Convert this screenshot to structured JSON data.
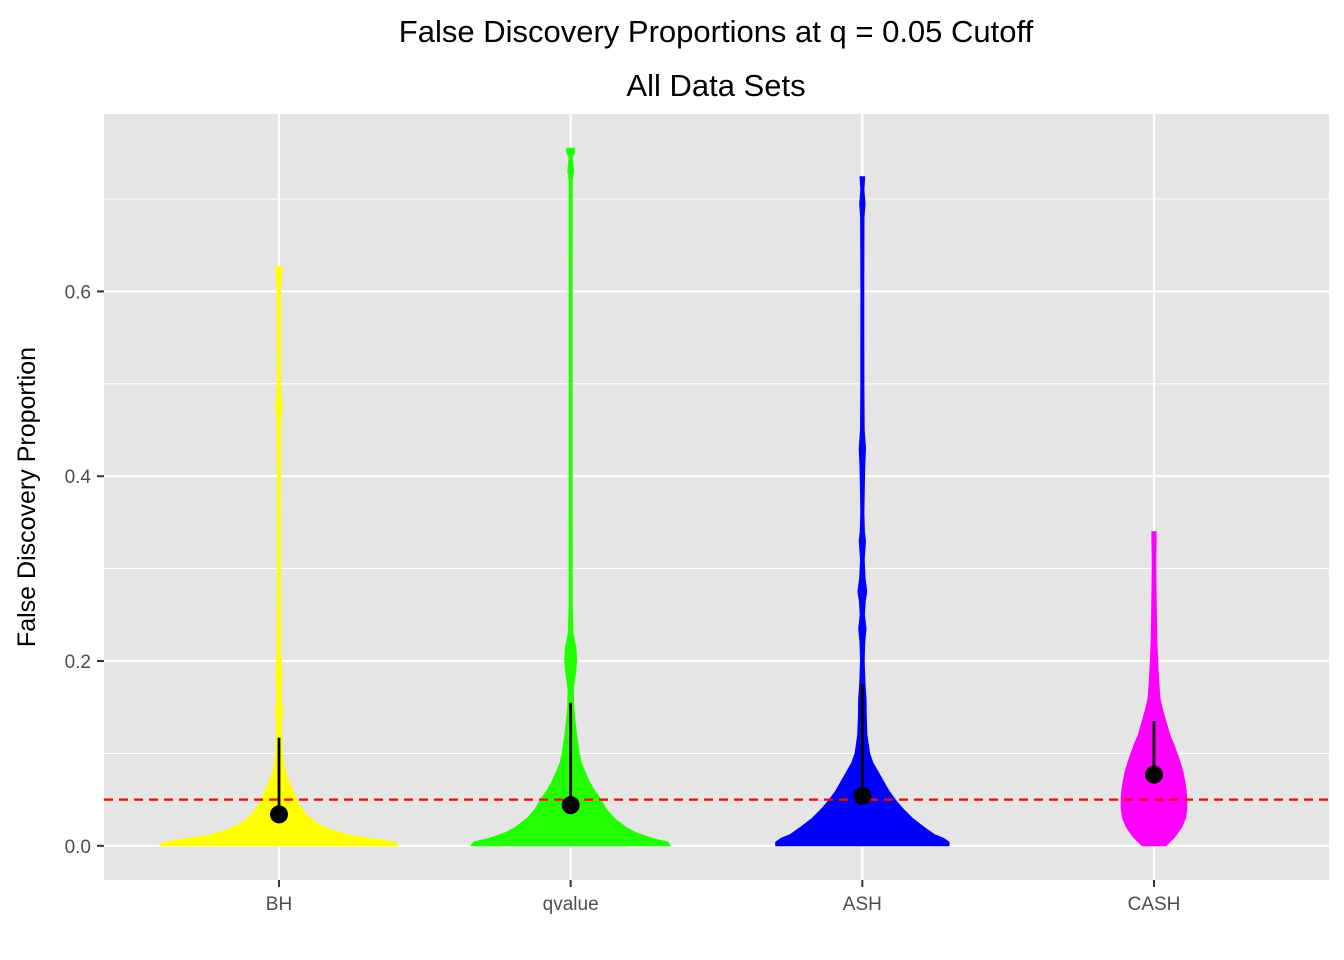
{
  "chart_data": {
    "type": "violin",
    "title": "False Discovery Proportions at q = 0.05 Cutoff",
    "subtitle": "All Data Sets",
    "xlabel": "",
    "ylabel": "False Discovery Proportion",
    "categories": [
      "BH",
      "qvalue",
      "ASH",
      "CASH"
    ],
    "ylim": [
      -0.037,
      0.792
    ],
    "y_ticks": [
      0.0,
      0.2,
      0.4,
      0.6
    ],
    "y_tick_labels": [
      "0.0",
      "0.2",
      "0.4",
      "0.6"
    ],
    "grid": true,
    "legend": "none",
    "reference_line": {
      "y": 0.05,
      "color": "#ff0000",
      "style": "dashed"
    },
    "series": [
      {
        "name": "BH",
        "color": "#ffff00",
        "max": 0.627,
        "mean": 0.034,
        "error_low": 0.034,
        "error_high": 0.117,
        "density_profile": [
          [
            0.0,
            0.91
          ],
          [
            0.004,
            0.88
          ],
          [
            0.008,
            0.7
          ],
          [
            0.012,
            0.52
          ],
          [
            0.018,
            0.38
          ],
          [
            0.025,
            0.28
          ],
          [
            0.035,
            0.2
          ],
          [
            0.045,
            0.15
          ],
          [
            0.055,
            0.12
          ],
          [
            0.065,
            0.09
          ],
          [
            0.075,
            0.06
          ],
          [
            0.085,
            0.04
          ],
          [
            0.1,
            0.025
          ],
          [
            0.12,
            0.02
          ],
          [
            0.135,
            0.018
          ],
          [
            0.145,
            0.028
          ],
          [
            0.155,
            0.018
          ],
          [
            0.17,
            0.016
          ],
          [
            0.185,
            0.022
          ],
          [
            0.2,
            0.016
          ],
          [
            0.22,
            0.012
          ],
          [
            0.3,
            0.01
          ],
          [
            0.4,
            0.011
          ],
          [
            0.46,
            0.014
          ],
          [
            0.475,
            0.026
          ],
          [
            0.49,
            0.014
          ],
          [
            0.52,
            0.011
          ],
          [
            0.6,
            0.012
          ],
          [
            0.62,
            0.022
          ],
          [
            0.627,
            0.022
          ]
        ]
      },
      {
        "name": "qvalue",
        "color": "#22ff00",
        "max": 0.755,
        "mean": 0.044,
        "error_low": 0.044,
        "error_high": 0.155,
        "density_profile": [
          [
            0.0,
            0.76
          ],
          [
            0.004,
            0.74
          ],
          [
            0.008,
            0.62
          ],
          [
            0.014,
            0.5
          ],
          [
            0.02,
            0.42
          ],
          [
            0.03,
            0.33
          ],
          [
            0.04,
            0.27
          ],
          [
            0.05,
            0.23
          ],
          [
            0.06,
            0.18
          ],
          [
            0.07,
            0.14
          ],
          [
            0.08,
            0.11
          ],
          [
            0.09,
            0.08
          ],
          [
            0.1,
            0.065
          ],
          [
            0.12,
            0.045
          ],
          [
            0.15,
            0.022
          ],
          [
            0.17,
            0.02
          ],
          [
            0.19,
            0.04
          ],
          [
            0.2,
            0.045
          ],
          [
            0.215,
            0.04
          ],
          [
            0.23,
            0.018
          ],
          [
            0.26,
            0.012
          ],
          [
            0.4,
            0.011
          ],
          [
            0.6,
            0.011
          ],
          [
            0.72,
            0.012
          ],
          [
            0.73,
            0.022
          ],
          [
            0.745,
            0.012
          ],
          [
            0.75,
            0.03
          ],
          [
            0.755,
            0.03
          ]
        ]
      },
      {
        "name": "ASH",
        "color": "#0000ff",
        "max": 0.724,
        "mean": 0.054,
        "error_low": 0.054,
        "error_high": 0.175,
        "density_profile": [
          [
            0.0,
            0.66
          ],
          [
            0.004,
            0.66
          ],
          [
            0.008,
            0.62
          ],
          [
            0.012,
            0.55
          ],
          [
            0.02,
            0.47
          ],
          [
            0.03,
            0.38
          ],
          [
            0.04,
            0.31
          ],
          [
            0.05,
            0.25
          ],
          [
            0.06,
            0.2
          ],
          [
            0.07,
            0.16
          ],
          [
            0.08,
            0.12
          ],
          [
            0.09,
            0.08
          ],
          [
            0.1,
            0.055
          ],
          [
            0.12,
            0.035
          ],
          [
            0.14,
            0.03
          ],
          [
            0.16,
            0.028
          ],
          [
            0.175,
            0.02
          ],
          [
            0.2,
            0.014
          ],
          [
            0.22,
            0.018
          ],
          [
            0.235,
            0.028
          ],
          [
            0.25,
            0.016
          ],
          [
            0.265,
            0.022
          ],
          [
            0.275,
            0.034
          ],
          [
            0.29,
            0.02
          ],
          [
            0.31,
            0.014
          ],
          [
            0.33,
            0.024
          ],
          [
            0.34,
            0.016
          ],
          [
            0.36,
            0.012
          ],
          [
            0.38,
            0.014
          ],
          [
            0.41,
            0.018
          ],
          [
            0.43,
            0.024
          ],
          [
            0.45,
            0.014
          ],
          [
            0.5,
            0.012
          ],
          [
            0.6,
            0.011
          ],
          [
            0.68,
            0.013
          ],
          [
            0.695,
            0.02
          ],
          [
            0.71,
            0.012
          ],
          [
            0.724,
            0.018
          ]
        ]
      },
      {
        "name": "CASH",
        "color": "#ff00ff",
        "max": 0.34,
        "mean": 0.077,
        "error_low": 0.077,
        "error_high": 0.135,
        "density_profile": [
          [
            0.0,
            0.09
          ],
          [
            0.01,
            0.16
          ],
          [
            0.02,
            0.21
          ],
          [
            0.03,
            0.24
          ],
          [
            0.04,
            0.25
          ],
          [
            0.05,
            0.25
          ],
          [
            0.06,
            0.245
          ],
          [
            0.07,
            0.235
          ],
          [
            0.08,
            0.22
          ],
          [
            0.09,
            0.2
          ],
          [
            0.1,
            0.175
          ],
          [
            0.11,
            0.15
          ],
          [
            0.12,
            0.12
          ],
          [
            0.13,
            0.1
          ],
          [
            0.14,
            0.08
          ],
          [
            0.15,
            0.06
          ],
          [
            0.16,
            0.045
          ],
          [
            0.18,
            0.035
          ],
          [
            0.2,
            0.028
          ],
          [
            0.22,
            0.022
          ],
          [
            0.25,
            0.018
          ],
          [
            0.28,
            0.015
          ],
          [
            0.31,
            0.014
          ],
          [
            0.33,
            0.016
          ],
          [
            0.34,
            0.016
          ]
        ]
      }
    ]
  }
}
